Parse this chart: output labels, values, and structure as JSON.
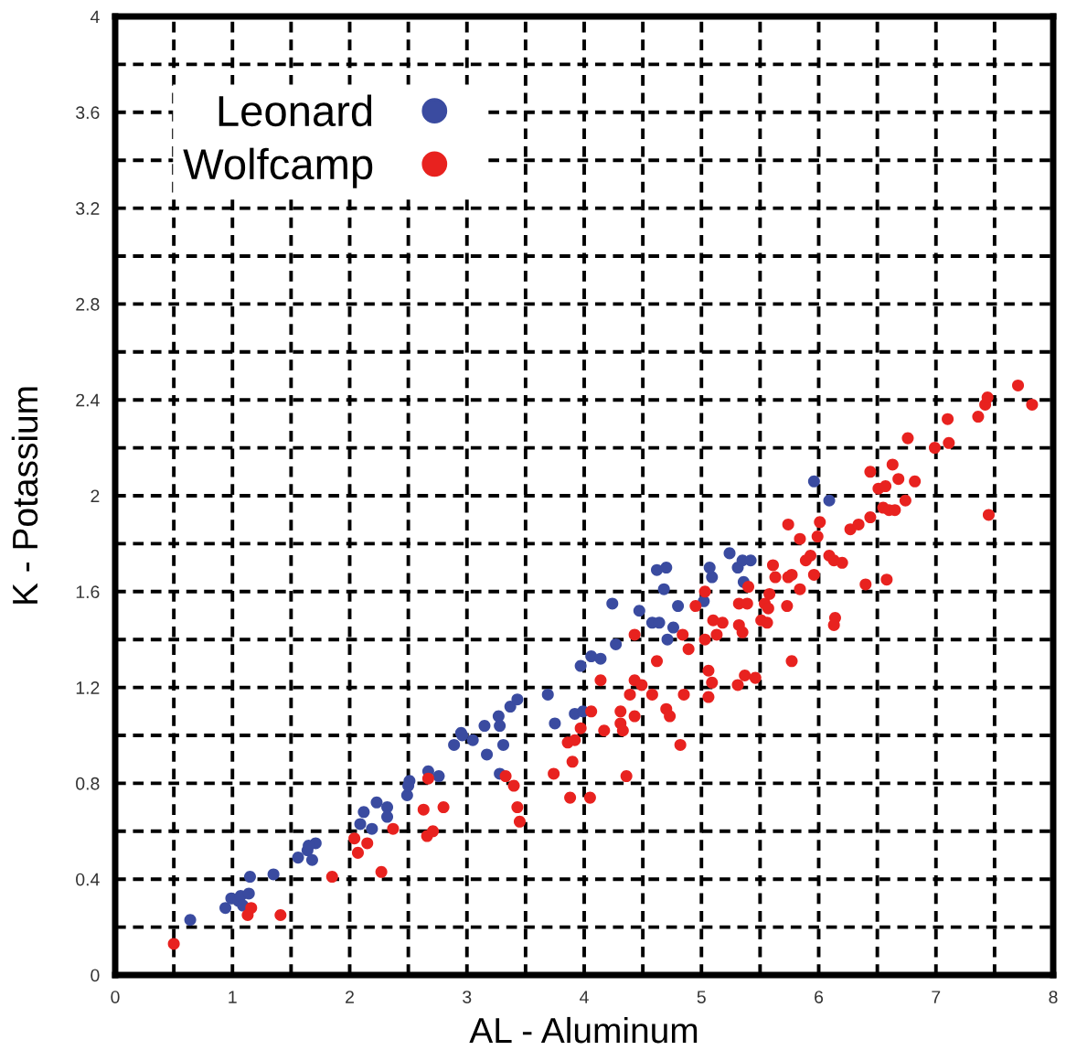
{
  "chart_data": {
    "type": "scatter",
    "xlabel": "AL - Aluminum",
    "ylabel": "K - Potassium",
    "xlim": [
      0,
      8
    ],
    "ylim": [
      0,
      4
    ],
    "xticks": [
      0,
      {
        "value": 0.5,
        "label": null
      },
      1,
      {
        "value": 1.5,
        "label": null
      },
      2,
      {
        "value": 2.5,
        "label": null
      },
      3,
      {
        "value": 3.5,
        "label": null
      },
      4,
      {
        "value": 4.5,
        "label": null
      },
      5,
      {
        "value": 5.5,
        "label": null
      },
      6,
      {
        "value": 6.5,
        "label": null
      },
      7,
      {
        "value": 7.5,
        "label": null
      },
      8
    ],
    "yticks": [
      0,
      {
        "value": 0.2,
        "label": null
      },
      0.4,
      {
        "value": 0.6,
        "label": null
      },
      0.8,
      {
        "value": 1.0,
        "label": null
      },
      1.2,
      {
        "value": 1.4,
        "label": null
      },
      1.6,
      {
        "value": 1.8,
        "label": null
      },
      2,
      {
        "value": 2.2,
        "label": null
      },
      2.4,
      {
        "value": 2.6,
        "label": null
      },
      2.8,
      {
        "value": 3.0,
        "label": null
      },
      3.2,
      {
        "value": 3.4,
        "label": null
      },
      3.6,
      {
        "value": 3.8,
        "label": null
      },
      4
    ],
    "grid": true,
    "legend": "top left",
    "marker": "circle",
    "series": [
      {
        "name": "Leonard",
        "color": "#3a4ba0",
        "x": [
          0.64,
          0.94,
          0.99,
          1.05,
          1.07,
          1.14,
          1.09,
          1.15,
          1.35,
          1.56,
          1.64,
          1.71,
          1.68,
          1.65,
          2.09,
          2.12,
          2.19,
          2.23,
          2.32,
          2.32,
          2.49,
          2.5,
          2.51,
          2.67,
          2.76,
          2.89,
          2.95,
          3.05,
          2.96,
          3.17,
          3.15,
          3.27,
          3.28,
          3.31,
          3.37,
          3.43,
          3.28,
          3.69,
          3.75,
          3.92,
          3.99,
          3.97,
          4.06,
          4.14,
          4.27,
          4.24,
          4.47,
          4.58,
          4.62,
          4.7,
          4.68,
          4.64,
          4.76,
          4.71,
          4.8,
          5.02,
          5.09,
          5.07,
          5.24,
          5.31,
          5.35,
          5.42,
          5.36,
          5.96,
          6.09
        ],
        "values": [
          0.23,
          0.28,
          0.32,
          0.31,
          0.33,
          0.34,
          0.29,
          0.41,
          0.42,
          0.49,
          0.52,
          0.55,
          0.48,
          0.54,
          0.63,
          0.68,
          0.61,
          0.72,
          0.7,
          0.66,
          0.75,
          0.79,
          0.81,
          0.85,
          0.83,
          0.96,
          1.01,
          0.98,
          1.0,
          0.92,
          1.04,
          1.08,
          1.04,
          0.96,
          1.12,
          1.15,
          0.84,
          1.17,
          1.05,
          1.09,
          1.1,
          1.29,
          1.33,
          1.32,
          1.38,
          1.55,
          1.52,
          1.47,
          1.69,
          1.7,
          1.61,
          1.47,
          1.45,
          1.4,
          1.54,
          1.56,
          1.66,
          1.7,
          1.76,
          1.7,
          1.73,
          1.73,
          1.64,
          2.06,
          1.98
        ]
      },
      {
        "name": "Wolfcamp",
        "color": "#e8221f",
        "x": [
          0.5,
          1.16,
          1.13,
          1.41,
          1.85,
          2.04,
          2.15,
          2.07,
          2.27,
          2.37,
          2.63,
          2.8,
          2.66,
          2.71,
          2.67,
          3.33,
          3.4,
          3.43,
          3.45,
          3.74,
          3.88,
          3.9,
          3.86,
          3.92,
          3.97,
          4.05,
          4.06,
          4.14,
          4.17,
          4.31,
          4.31,
          4.33,
          4.36,
          4.39,
          4.43,
          4.43,
          4.49,
          4.43,
          4.58,
          4.62,
          4.7,
          4.73,
          4.82,
          4.84,
          4.85,
          4.89,
          4.95,
          5.03,
          5.03,
          5.06,
          5.09,
          5.06,
          5.1,
          5.13,
          5.18,
          5.32,
          5.35,
          5.31,
          5.37,
          5.46,
          5.32,
          5.39,
          5.4,
          5.51,
          5.54,
          5.77,
          5.57,
          5.58,
          5.56,
          5.61,
          5.63,
          5.73,
          5.74,
          5.77,
          5.74,
          5.84,
          5.84,
          5.89,
          5.93,
          5.96,
          5.99,
          6.01,
          6.09,
          6.13,
          6.2,
          6.14,
          6.13,
          6.27,
          6.34,
          6.44,
          6.4,
          6.58,
          6.44,
          6.51,
          6.57,
          6.63,
          6.68,
          6.82,
          6.74,
          6.55,
          6.6,
          6.65,
          6.76,
          6.99,
          7.1,
          7.11,
          7.36,
          7.42,
          7.44,
          7.7,
          7.82,
          7.45
        ],
        "values": [
          0.13,
          0.28,
          0.25,
          0.25,
          0.41,
          0.57,
          0.55,
          0.51,
          0.43,
          0.61,
          0.69,
          0.7,
          0.58,
          0.6,
          0.82,
          0.83,
          0.79,
          0.7,
          0.64,
          0.84,
          0.74,
          0.89,
          0.97,
          0.98,
          1.03,
          0.74,
          1.1,
          1.23,
          1.02,
          1.1,
          1.05,
          1.02,
          0.83,
          1.17,
          1.23,
          1.08,
          1.21,
          1.42,
          1.17,
          1.31,
          1.11,
          1.08,
          0.96,
          1.42,
          1.17,
          1.36,
          1.54,
          1.6,
          1.4,
          1.27,
          1.22,
          1.16,
          1.48,
          1.42,
          1.47,
          1.46,
          1.43,
          1.21,
          1.25,
          1.24,
          1.55,
          1.55,
          1.62,
          1.48,
          1.55,
          1.31,
          1.53,
          1.59,
          1.47,
          1.71,
          1.66,
          1.54,
          1.66,
          1.67,
          1.88,
          1.82,
          1.61,
          1.73,
          1.75,
          1.67,
          1.83,
          1.89,
          1.75,
          1.73,
          1.72,
          1.49,
          1.46,
          1.86,
          1.88,
          1.91,
          1.63,
          1.65,
          2.1,
          2.03,
          2.04,
          2.13,
          2.07,
          2.06,
          1.98,
          1.95,
          1.94,
          1.94,
          2.24,
          2.2,
          2.32,
          2.22,
          2.33,
          2.38,
          2.41,
          2.46,
          2.38,
          1.92
        ]
      }
    ]
  }
}
